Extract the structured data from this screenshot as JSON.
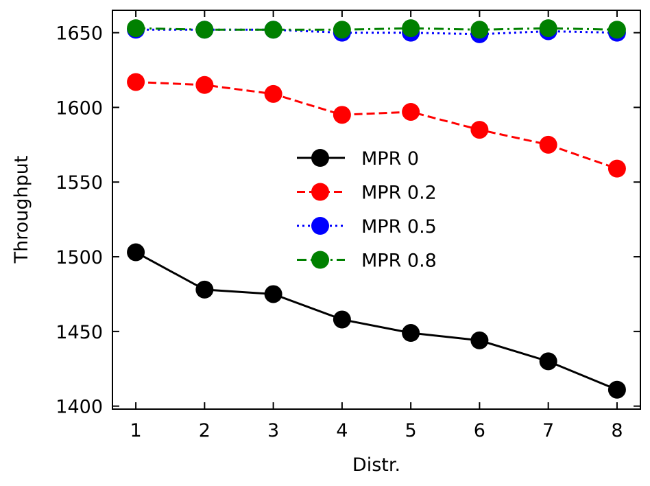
{
  "chart_data": {
    "type": "line",
    "xlabel": "Distr.",
    "ylabel": "Throughput",
    "x": [
      1,
      2,
      3,
      4,
      5,
      6,
      7,
      8
    ],
    "xlim": [
      0.66,
      8.34
    ],
    "ylim": [
      1398,
      1665
    ],
    "xticks": [
      "1",
      "2",
      "3",
      "4",
      "5",
      "6",
      "7",
      "8"
    ],
    "yticks": [
      1400,
      1450,
      1500,
      1550,
      1600,
      1650
    ],
    "legend_position": "center-right",
    "grid": false,
    "series": [
      {
        "name": "MPR 0",
        "color": "#000000",
        "dash": "solid",
        "values": [
          1503,
          1478,
          1475,
          1458,
          1449,
          1444,
          1430,
          1411
        ]
      },
      {
        "name": "MPR 0.2",
        "color": "#ff0000",
        "dash": "dashed",
        "values": [
          1617,
          1615,
          1609,
          1595,
          1597,
          1585,
          1575,
          1559
        ]
      },
      {
        "name": "MPR 0.5",
        "color": "#0000ff",
        "dash": "dotted",
        "values": [
          1652,
          1652,
          1652,
          1650,
          1650,
          1649,
          1651,
          1650
        ]
      },
      {
        "name": "MPR 0.8",
        "color": "#008000",
        "dash": "dashdot",
        "values": [
          1653,
          1652,
          1652,
          1652,
          1653,
          1652,
          1653,
          1652
        ]
      }
    ]
  }
}
